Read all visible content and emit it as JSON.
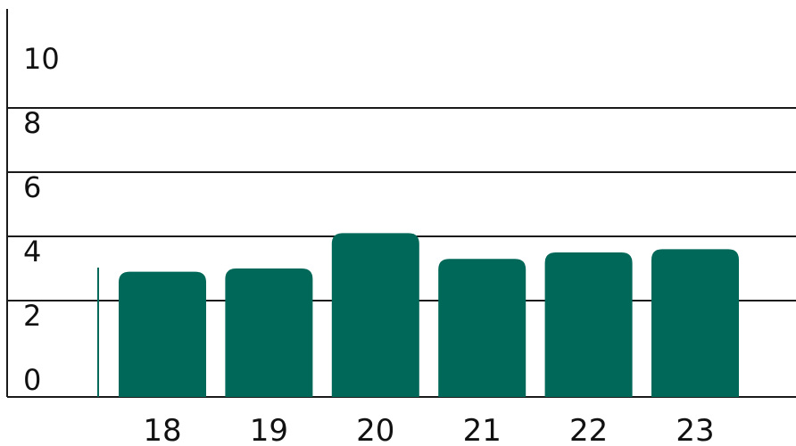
{
  "chart_data": {
    "type": "bar",
    "categories": [
      "18",
      "19",
      "20",
      "21",
      "22",
      "23"
    ],
    "values": [
      3.9,
      4.0,
      5.1,
      4.3,
      4.5,
      4.6
    ],
    "title": "",
    "xlabel": "",
    "ylabel": "",
    "ylim": [
      0,
      10
    ],
    "yticks": [
      0,
      2,
      4,
      6,
      8,
      10
    ],
    "grid": true,
    "legend": "none",
    "bar_color": "#006859"
  }
}
